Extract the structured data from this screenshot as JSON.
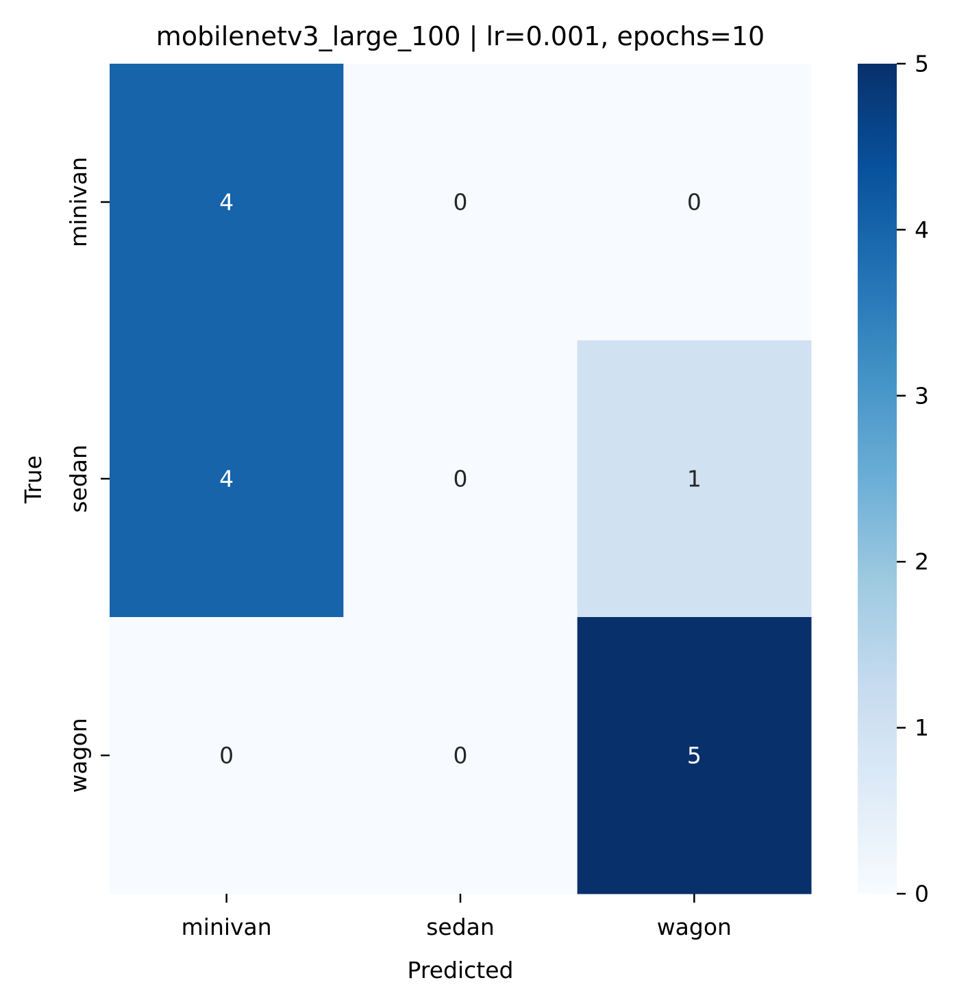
{
  "chart_data": {
    "type": "heatmap",
    "title": "mobilenetv3_large_100 | lr=0.001, epochs=10",
    "xlabel": "Predicted",
    "ylabel": "True",
    "x_categories": [
      "minivan",
      "sedan",
      "wagon"
    ],
    "y_categories": [
      "minivan",
      "sedan",
      "wagon"
    ],
    "values": [
      [
        4,
        0,
        0
      ],
      [
        4,
        0,
        1
      ],
      [
        0,
        0,
        5
      ]
    ],
    "colormap": "Blues",
    "colorbar": {
      "range": [
        0,
        5
      ],
      "ticks": [
        0,
        1,
        2,
        3,
        4,
        5
      ]
    },
    "annot_colors": {
      "light": "#ffffff",
      "dark": "#262626"
    }
  }
}
